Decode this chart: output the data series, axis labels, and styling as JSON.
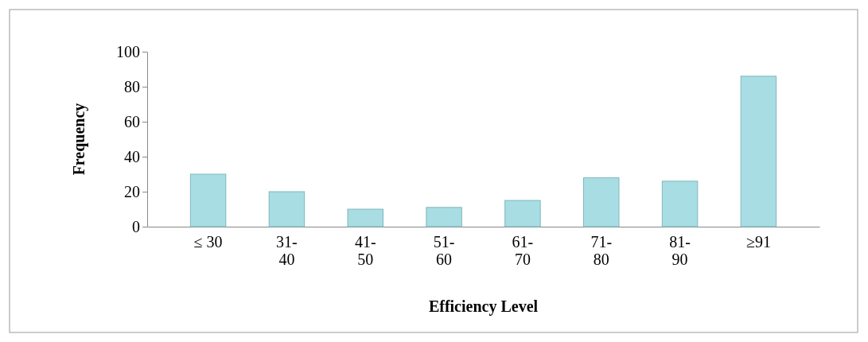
{
  "chart_data": {
    "type": "bar",
    "xlabel": "Efficiency Level",
    "ylabel": "Frequency",
    "categories": [
      "≤ 30",
      "31-40",
      "41-50",
      "51-60",
      "61-70",
      "71-80",
      "81-90",
      "≥91"
    ],
    "values": [
      30,
      20,
      10,
      11,
      15,
      28,
      26,
      86
    ],
    "color": "#a8dde3",
    "ylim": [
      0,
      100
    ],
    "yticks": [
      0,
      20,
      40,
      60,
      80,
      100
    ],
    "grid": false
  }
}
